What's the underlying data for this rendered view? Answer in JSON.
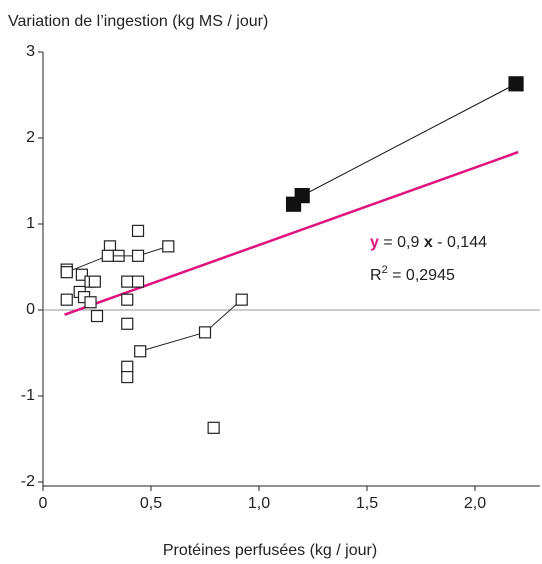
{
  "chart_data": {
    "type": "scatter",
    "title": "Variation de l’ingestion (kg MS / jour)",
    "x_label": "Protéines perfusées (kg / jour)",
    "xlim": [
      0,
      2.3
    ],
    "ylim": [
      -2,
      3
    ],
    "xticks": [
      0,
      {
        "value": 0.5,
        "label": "0,5"
      },
      {
        "value": 1,
        "label": "1,0"
      },
      {
        "value": 1.5,
        "label": "1,5"
      },
      {
        "value": 2,
        "label": "2,0"
      }
    ],
    "yticks": [
      3,
      2,
      1,
      0,
      -1,
      -2
    ],
    "zero_line": true,
    "series": [
      {
        "color": "#222222",
        "marker": "open-square",
        "line": false,
        "x": [
          0.11,
          0.11,
          0.17,
          0.18,
          0.19,
          0.22,
          0.22,
          0.24,
          0.25,
          0.31,
          0.35,
          0.39,
          0.39,
          0.39,
          0.39,
          0.39,
          0.44,
          0.44,
          0.79
        ],
        "values": [
          0.12,
          0.47,
          0.21,
          0.41,
          0.15,
          0.09,
          0.33,
          0.33,
          -0.07,
          0.74,
          0.63,
          0.33,
          0.12,
          -0.16,
          -0.66,
          -0.78,
          0.92,
          0.33,
          -1.37
        ]
      },
      {
        "color": "#222222",
        "marker": "open-square",
        "line": true,
        "x": [
          0.11,
          0.3,
          0.44,
          0.58
        ],
        "values": [
          0.44,
          0.63,
          0.63,
          0.74
        ]
      },
      {
        "color": "#222222",
        "marker": "open-square",
        "line": true,
        "x": [
          0.45,
          0.75,
          0.92
        ],
        "values": [
          -0.48,
          -0.26,
          0.12
        ]
      },
      {
        "color": "#111111",
        "marker": "filled-square",
        "line": true,
        "x": [
          1.16,
          1.2,
          2.19
        ],
        "values": [
          1.23,
          1.33,
          2.63
        ]
      }
    ],
    "regression": {
      "slope": 0.9,
      "intercept": -0.144,
      "x": [
        0.1,
        2.2
      ],
      "color": "#e0117f",
      "equation": [
        "y",
        " = 0,9 ",
        "x",
        " - 0,144"
      ],
      "r2": [
        "R",
        "2",
        " = 0,2945"
      ]
    }
  }
}
